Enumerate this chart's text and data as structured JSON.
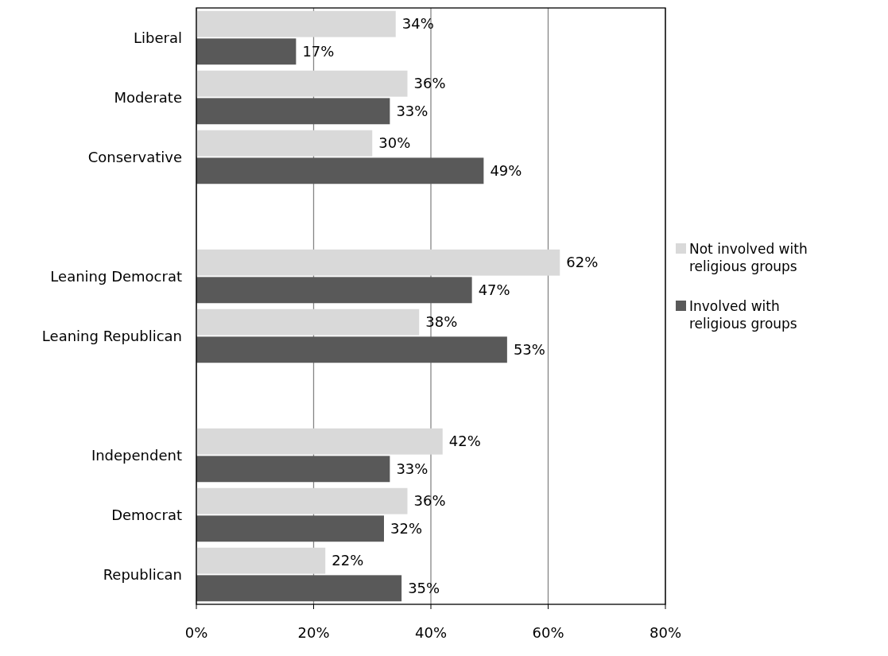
{
  "chart_data": {
    "type": "bar",
    "orientation": "horizontal",
    "categories": [
      "Liberal",
      "Moderate",
      "Conservative",
      null,
      "Leaning Democrat",
      "Leaning Republican",
      null,
      "Independent",
      "Democrat",
      "Republican"
    ],
    "series": [
      {
        "name": "Not involved with religious groups",
        "color": "#d9d9d9",
        "values": [
          34,
          36,
          30,
          null,
          62,
          38,
          null,
          42,
          36,
          22
        ],
        "value_labels": [
          "34%",
          "36%",
          "30%",
          null,
          "62%",
          "38%",
          null,
          "42%",
          "36%",
          "22%"
        ]
      },
      {
        "name": "Involved with religious groups",
        "color": "#595959",
        "values": [
          17,
          33,
          49,
          null,
          47,
          53,
          null,
          33,
          32,
          35
        ],
        "value_labels": [
          "17%",
          "33%",
          "49%",
          null,
          "47%",
          "53%",
          null,
          "33%",
          "32%",
          "35%"
        ]
      }
    ],
    "xlim": [
      0,
      80
    ],
    "xticks": [
      {
        "value": 0,
        "label": "0%"
      },
      {
        "value": 20,
        "label": "20%"
      },
      {
        "value": 40,
        "label": "40%"
      },
      {
        "value": 60,
        "label": "60%"
      },
      {
        "value": 80,
        "label": "80%"
      }
    ],
    "grid": "x",
    "legend": "right"
  }
}
